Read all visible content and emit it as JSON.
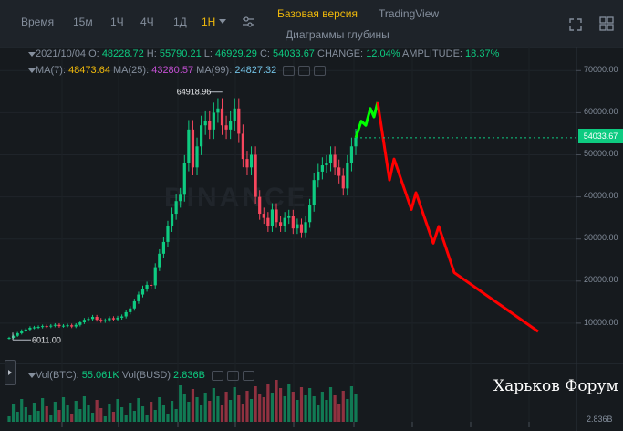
{
  "toolbar": {
    "time_label": "Время",
    "intervals": [
      "15м",
      "1Ч",
      "4Ч",
      "1Д",
      "1Н"
    ],
    "active_interval": "1Н"
  },
  "views": {
    "basic": "Базовая версия",
    "tradingview": "TradingView",
    "depth": "Диаграммы глубины",
    "active": "Базовая версия"
  },
  "ohlc": {
    "date": "2021/10/04",
    "o_label": "O:",
    "o": "48228.72",
    "h_label": "H:",
    "h": "55790.21",
    "l_label": "L:",
    "l": "46929.29",
    "c_label": "C:",
    "c": "54033.67",
    "change_label": "CHANGE:",
    "change": "12.04%",
    "amplitude_label": "AMPLITUDE:",
    "amplitude": "18.37%"
  },
  "ma": {
    "ma7_label": "MA(7):",
    "ma7": "48473.64",
    "ma25_label": "MA(25):",
    "ma25": "43280.57",
    "ma99_label": "MA(99):",
    "ma99": "24827.32"
  },
  "volume": {
    "btc_label": "Vol(BTC):",
    "btc": "55.061K",
    "busd_label": "Vol(BUSD)",
    "busd": "2.836B"
  },
  "price_axis": [
    "70000.00",
    "60000.00",
    "50000.00",
    "40000.00",
    "30000.00",
    "20000.00",
    "10000.00"
  ],
  "current_price": "54033.67",
  "volume_axis_label": "2.836B",
  "annotations": {
    "high": "64918.96",
    "low": "6011.00"
  },
  "watermark": "BINANCE",
  "forum_caption": "Харьков Форум",
  "colors": {
    "up": "#0ecb81",
    "down": "#f6465d",
    "accent": "#f0b90b",
    "projection_down": "#ff0000",
    "projection_up": "#00ff00"
  },
  "chart_data": {
    "type": "candlestick",
    "interval": "1 week",
    "ylim": [
      0,
      72000
    ],
    "y_ticks": [
      10000,
      20000,
      30000,
      40000,
      50000,
      60000,
      70000
    ],
    "last_close": 54033.67,
    "marked_high": 64918.96,
    "marked_low": 6011.0,
    "close_series": [
      6500,
      7000,
      7600,
      8200,
      8500,
      8900,
      9000,
      9100,
      9300,
      9200,
      9400,
      9600,
      9300,
      9400,
      9500,
      9200,
      9600,
      10200,
      10800,
      11000,
      11500,
      10800,
      10500,
      10700,
      11200,
      10900,
      11300,
      11600,
      12600,
      13500,
      15200,
      16800,
      18200,
      19100,
      19000,
      23300,
      26500,
      29300,
      33000,
      36000,
      39000,
      40500,
      48000,
      56000,
      47000,
      52000,
      57000,
      58000,
      56000,
      60000,
      61000,
      57000,
      56000,
      58000,
      61000,
      55000,
      49000,
      47000,
      50000,
      40000,
      36000,
      35000,
      33000,
      37000,
      34000,
      33000,
      35000,
      35500,
      32500,
      33500,
      31500,
      34000,
      38000,
      44000,
      46000,
      47500,
      48000,
      50000,
      47000,
      45000,
      42000,
      48000,
      52000,
      54033.67
    ],
    "projection_up": [
      54033,
      58000,
      57000,
      61000,
      59000,
      62500
    ],
    "projection_down": [
      62500,
      44000,
      49000,
      37000,
      41000,
      29000,
      33000,
      22000,
      8000
    ]
  }
}
